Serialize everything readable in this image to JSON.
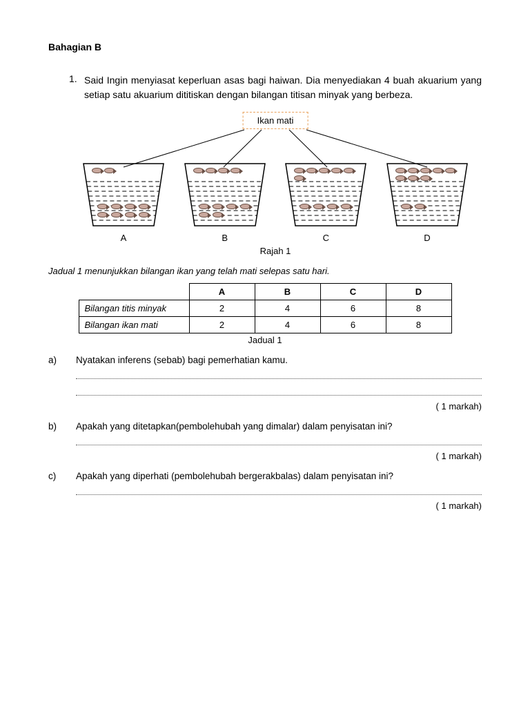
{
  "section_title": "Bahagian B",
  "question": {
    "number": "1.",
    "text": "Said Ingin menyiasat keperluan asas bagi haiwan.  Dia menyediakan 4 buah akuarium yang setiap satu akuarium dititiskan dengan bilangan titisan minyak yang berbeza."
  },
  "diagram": {
    "callout_label": "Ikan mati",
    "callout_border_color": "#e8a05a",
    "aquarium_labels": [
      "A",
      "B",
      "C",
      "D"
    ],
    "caption": "Rajah 1",
    "aquarium_outline_color": "#000000",
    "water_line_color": "#000000",
    "fish_fill": "#c9a89d",
    "fish_outline": "#6b5147",
    "dead_fish_counts": [
      2,
      4,
      6,
      8
    ],
    "live_fish_counts": [
      8,
      6,
      4,
      2
    ]
  },
  "table_intro": "Jadual 1 menunjukkan bilangan ikan yang telah mati selepas satu hari.",
  "table": {
    "columns": [
      "A",
      "B",
      "C",
      "D"
    ],
    "rows": [
      {
        "label": "Bilangan titis minyak",
        "values": [
          "2",
          "4",
          "6",
          "8"
        ]
      },
      {
        "label": "Bilangan ikan mati",
        "values": [
          "2",
          "4",
          "6",
          "8"
        ]
      }
    ],
    "caption": "Jadual 1",
    "border_color": "#000000"
  },
  "subquestions": [
    {
      "label": "a)",
      "text": "Nyatakan inferens (sebab) bagi pemerhatian kamu.",
      "lines": 2,
      "marks": "( 1 markah)"
    },
    {
      "label": "b)",
      "text": "Apakah yang ditetapkan(pembolehubah yang dimalar) dalam penyisatan ini?",
      "lines": 1,
      "marks": "( 1 markah)"
    },
    {
      "label": "c)",
      "text": "Apakah yang diperhati (pembolehubah bergerakbalas) dalam penyisatan ini?",
      "lines": 1,
      "marks": "( 1 markah)"
    }
  ]
}
